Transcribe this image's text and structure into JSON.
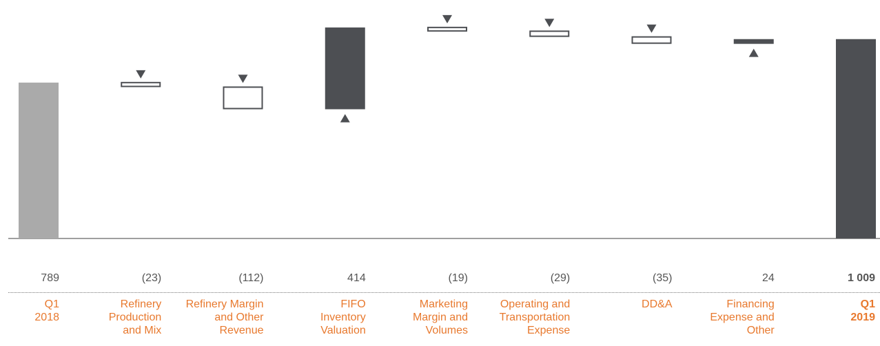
{
  "chart_data": {
    "type": "waterfall",
    "categories": [
      "Q1\n2018",
      "Refinery\nProduction\nand Mix",
      "Refinery Margin\nand Other\nRevenue",
      "FIFO\nInventory\nValuation",
      "Marketing\nMargin and\nVolumes",
      "Operating and\nTransportation\nExpense",
      "DD&A",
      "Financing\nExpense and\nOther",
      "Q1\n2019"
    ],
    "values": [
      789,
      -23,
      -112,
      414,
      -19,
      -29,
      -35,
      24,
      1009
    ],
    "value_labels": [
      "789",
      "(23)",
      "(112)",
      "414",
      "(19)",
      "(29)",
      "(35)",
      "24",
      "1 009"
    ],
    "measures": [
      "absolute",
      "relative",
      "relative",
      "relative",
      "relative",
      "relative",
      "relative",
      "relative",
      "total"
    ],
    "colors": {
      "absolute": "#aaaaaa",
      "increase": "#4d4f53",
      "decrease": "#ffffff",
      "total": "#4d4f53",
      "outline": "#4d4f53",
      "label": "#e8792e"
    },
    "ylim": [
      0,
      1200
    ]
  }
}
